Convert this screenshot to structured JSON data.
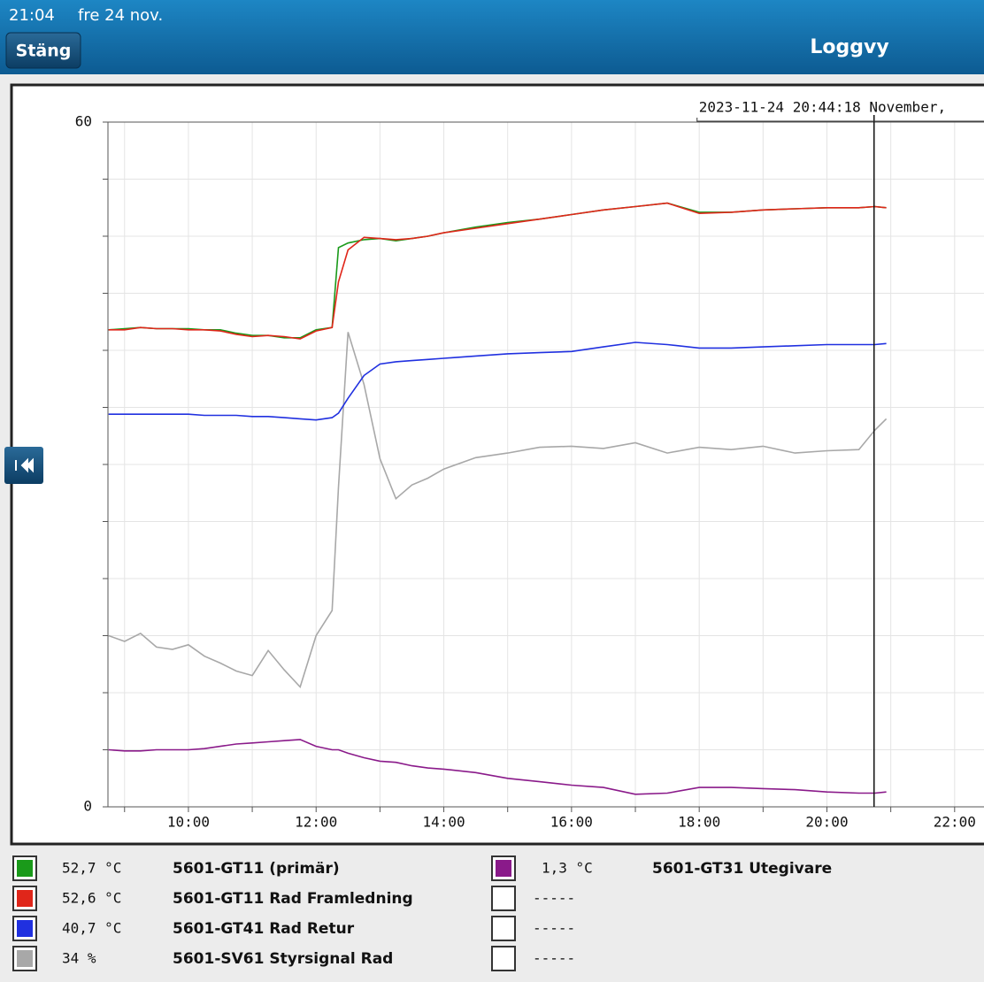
{
  "header": {
    "time": "21:04",
    "date": "fre 24 nov.",
    "close_button": "Stäng",
    "title": "Loggvy"
  },
  "chart_data": {
    "type": "line",
    "cursor": {
      "x": 20.738,
      "label": "2023-11-24 20:44:18 November,"
    },
    "x": [
      8.75,
      9,
      9.25,
      9.5,
      9.75,
      10,
      10.25,
      10.5,
      10.75,
      11,
      11.25,
      11.5,
      11.75,
      12,
      12.25,
      12.35,
      12.5,
      12.75,
      13,
      13.25,
      13.5,
      13.75,
      14,
      14.5,
      15,
      15.5,
      16,
      16.5,
      17,
      17.5,
      18,
      18.5,
      19,
      19.5,
      20,
      20.5,
      20.75,
      20.93
    ],
    "xlim": [
      8.74,
      22.46
    ],
    "xticks": [
      {
        "value": 10,
        "label": "10:00"
      },
      {
        "value": 12,
        "label": "12:00"
      },
      {
        "value": 14,
        "label": "14:00"
      },
      {
        "value": 16,
        "label": "16:00"
      },
      {
        "value": 18,
        "label": "18:00"
      },
      {
        "value": 20,
        "label": "20:00"
      },
      {
        "value": 22,
        "label": "22:00"
      }
    ],
    "xminorticks": [
      9,
      11,
      13,
      15,
      17,
      19,
      21
    ],
    "ylim": [
      0,
      60
    ],
    "yticks": [
      0,
      60
    ],
    "yminorticks": [
      5,
      10,
      15,
      20,
      25,
      30,
      35,
      40,
      45,
      50,
      55
    ],
    "grid": true,
    "series": [
      {
        "name": "5601-GT11 (primär)",
        "reading": "52,7 °C",
        "color": "#1a9a1a",
        "values": [
          41.8,
          41.9,
          42.0,
          41.9,
          41.9,
          41.9,
          41.8,
          41.8,
          41.5,
          41.3,
          41.3,
          41.1,
          41.1,
          41.8,
          42.0,
          49.0,
          49.4,
          49.7,
          49.8,
          49.6,
          49.8,
          50.0,
          50.3,
          50.8,
          51.2,
          51.5,
          51.9,
          52.3,
          52.6,
          52.9,
          52.1,
          52.1,
          52.3,
          52.4,
          52.5,
          52.5,
          52.6,
          52.5
        ]
      },
      {
        "name": "5601-GT11 Rad Framledning",
        "reading": "52,6 °C",
        "color": "#e0261a",
        "values": [
          41.8,
          41.8,
          42.0,
          41.9,
          41.9,
          41.8,
          41.8,
          41.7,
          41.4,
          41.2,
          41.3,
          41.2,
          41.0,
          41.7,
          42.0,
          46.0,
          48.8,
          49.9,
          49.8,
          49.7,
          49.8,
          50.0,
          50.3,
          50.7,
          51.1,
          51.5,
          51.9,
          52.3,
          52.6,
          52.9,
          52.0,
          52.1,
          52.3,
          52.4,
          52.5,
          52.5,
          52.6,
          52.5
        ]
      },
      {
        "name": "5601-GT41 Rad Retur",
        "reading": "40,7 °C",
        "color": "#2030e0",
        "values": [
          34.4,
          34.4,
          34.4,
          34.4,
          34.4,
          34.4,
          34.3,
          34.3,
          34.3,
          34.2,
          34.2,
          34.1,
          34.0,
          33.9,
          34.1,
          34.5,
          35.8,
          37.8,
          38.8,
          39.0,
          39.1,
          39.2,
          39.3,
          39.5,
          39.7,
          39.8,
          39.9,
          40.3,
          40.7,
          40.5,
          40.2,
          40.2,
          40.3,
          40.4,
          40.5,
          40.5,
          40.5,
          40.6
        ]
      },
      {
        "name": "5601-SV61 Styrsignal Rad",
        "reading": "34 %",
        "color": "#a8a8a8",
        "values": [
          15.0,
          14.5,
          15.2,
          14.0,
          13.8,
          14.2,
          13.2,
          12.6,
          11.9,
          11.5,
          13.7,
          12.0,
          10.5,
          15.0,
          17.2,
          28.0,
          41.6,
          37.0,
          30.5,
          27.0,
          28.2,
          28.8,
          29.6,
          30.6,
          31.0,
          31.5,
          31.6,
          31.4,
          31.9,
          31.0,
          31.5,
          31.3,
          31.6,
          31.0,
          31.2,
          31.3,
          33.0,
          34.0
        ]
      },
      {
        "name": "5601-GT31 Utegivare",
        "reading": "1,3 °C",
        "color": "#8a1a8a",
        "values": [
          5.0,
          4.9,
          4.9,
          5.0,
          5.0,
          5.0,
          5.1,
          5.3,
          5.5,
          5.6,
          5.7,
          5.8,
          5.9,
          5.3,
          5.0,
          5.0,
          4.7,
          4.3,
          4.0,
          3.9,
          3.6,
          3.4,
          3.3,
          3.0,
          2.5,
          2.2,
          1.9,
          1.7,
          1.1,
          1.2,
          1.7,
          1.7,
          1.6,
          1.5,
          1.3,
          1.2,
          1.2,
          1.3
        ]
      }
    ],
    "empty_slots": [
      "-----",
      "-----",
      "-----"
    ]
  }
}
